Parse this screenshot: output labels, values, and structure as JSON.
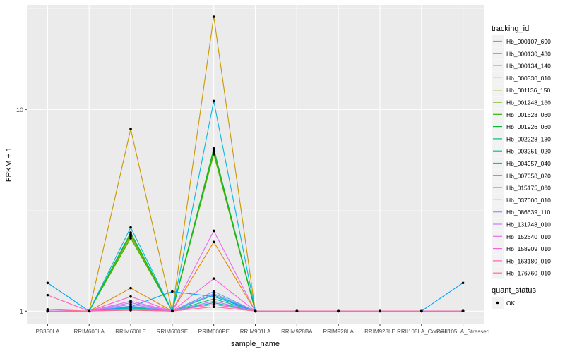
{
  "chart_data": {
    "type": "line",
    "xlabel": "sample_name",
    "ylabel": "FPKM + 1",
    "y_scale": "log10",
    "ylim": [
      0.86,
      33
    ],
    "y_ticks": [
      1,
      10
    ],
    "y_tick_labels": [
      "1",
      "10"
    ],
    "grid": true,
    "panel_background": "#ebebeb",
    "categories": [
      "PB350LA",
      "RRIM600LA",
      "RRIM600LE",
      "RRIM600SE",
      "RRIM600PE",
      "RRIM901LA",
      "RRIM928BA",
      "RRIM928LA",
      "RRIM928LE",
      "RRII105LA_Control",
      "RRII105LA_Stressed"
    ],
    "legend": {
      "position": "right",
      "color_title": "tracking_id",
      "shape_title": "quant_status",
      "shape_items": [
        {
          "label": "OK",
          "shape": "circle"
        }
      ]
    },
    "series": [
      {
        "name": "Hb_000107_690",
        "color": "#F8766D",
        "values": [
          1.0,
          1.0,
          1.05,
          1.0,
          1.1,
          1.0,
          1.0,
          1.0,
          1.0,
          1.0,
          1.0
        ]
      },
      {
        "name": "Hb_000130_430",
        "color": "#E58700",
        "values": [
          1.0,
          1.0,
          1.3,
          1.0,
          2.2,
          1.0,
          1.0,
          1.0,
          1.0,
          1.0,
          1.0
        ]
      },
      {
        "name": "Hb_000134_140",
        "color": "#C99800",
        "values": [
          1.0,
          1.0,
          8.0,
          1.0,
          29.0,
          1.0,
          1.0,
          1.0,
          1.0,
          1.0,
          1.0
        ]
      },
      {
        "name": "Hb_000330_010",
        "color": "#A3A500",
        "values": [
          1.0,
          1.0,
          2.4,
          1.0,
          6.2,
          1.0,
          1.0,
          1.0,
          1.0,
          1.0,
          1.0
        ]
      },
      {
        "name": "Hb_001136_150",
        "color": "#8EAA00",
        "values": [
          1.0,
          1.0,
          2.35,
          1.0,
          6.0,
          1.0,
          1.0,
          1.0,
          1.0,
          1.0,
          1.0
        ]
      },
      {
        "name": "Hb_001248_160",
        "color": "#6BB100",
        "values": [
          1.0,
          1.0,
          2.4,
          1.0,
          6.3,
          1.0,
          1.0,
          1.0,
          1.0,
          1.0,
          1.0
        ]
      },
      {
        "name": "Hb_001628_060",
        "color": "#39B600",
        "values": [
          1.0,
          1.0,
          2.3,
          1.0,
          6.1,
          1.0,
          1.0,
          1.0,
          1.0,
          1.0,
          1.0
        ]
      },
      {
        "name": "Hb_001926_060",
        "color": "#00BA38",
        "values": [
          1.0,
          1.0,
          2.45,
          1.0,
          6.4,
          1.0,
          1.0,
          1.0,
          1.0,
          1.0,
          1.0
        ]
      },
      {
        "name": "Hb_002228_130",
        "color": "#00BF7D",
        "values": [
          1.0,
          1.0,
          1.05,
          1.0,
          1.15,
          1.0,
          1.0,
          1.0,
          1.0,
          1.0,
          1.0
        ]
      },
      {
        "name": "Hb_003251_020",
        "color": "#00C1A3",
        "values": [
          1.0,
          1.0,
          1.04,
          1.0,
          1.2,
          1.0,
          1.0,
          1.0,
          1.0,
          1.0,
          1.0
        ]
      },
      {
        "name": "Hb_004957_040",
        "color": "#00BFC4",
        "values": [
          1.0,
          1.0,
          1.03,
          1.0,
          1.1,
          1.0,
          1.0,
          1.0,
          1.0,
          1.0,
          1.0
        ]
      },
      {
        "name": "Hb_007058_020",
        "color": "#00B9E3",
        "values": [
          1.0,
          1.0,
          2.6,
          1.0,
          11.0,
          1.0,
          1.0,
          1.0,
          1.0,
          1.0,
          1.0
        ]
      },
      {
        "name": "Hb_015175_060",
        "color": "#00A5FF",
        "values": [
          1.38,
          1.0,
          1.05,
          1.25,
          1.18,
          1.0,
          1.0,
          1.0,
          1.0,
          1.0,
          1.38
        ]
      },
      {
        "name": "Hb_037000_010",
        "color": "#619CFF",
        "values": [
          1.0,
          1.0,
          1.06,
          1.0,
          1.25,
          1.0,
          1.0,
          1.0,
          1.0,
          1.0,
          1.0
        ]
      },
      {
        "name": "Hb_086639_110",
        "color": "#9590FF",
        "values": [
          1.0,
          1.0,
          1.08,
          1.0,
          1.22,
          1.0,
          1.0,
          1.0,
          1.0,
          1.0,
          1.0
        ]
      },
      {
        "name": "Hb_131748_010",
        "color": "#C77CFF",
        "values": [
          1.0,
          1.0,
          1.1,
          1.0,
          1.12,
          1.0,
          1.0,
          1.0,
          1.0,
          1.0,
          1.0
        ]
      },
      {
        "name": "Hb_152640_010",
        "color": "#E76BF3",
        "values": [
          1.0,
          1.0,
          1.12,
          1.0,
          2.5,
          1.0,
          1.0,
          1.0,
          1.0,
          1.0,
          1.0
        ]
      },
      {
        "name": "Hb_158909_010",
        "color": "#FA62DB",
        "values": [
          1.0,
          1.0,
          1.18,
          1.0,
          1.45,
          1.0,
          1.0,
          1.0,
          1.0,
          1.0,
          1.0
        ]
      },
      {
        "name": "Hb_163180_010",
        "color": "#FF62BC",
        "values": [
          1.2,
          1.0,
          1.02,
          1.0,
          1.08,
          1.0,
          1.0,
          1.0,
          1.0,
          1.0,
          1.0
        ]
      },
      {
        "name": "Hb_176760_010",
        "color": "#FF6C91",
        "values": [
          1.02,
          1.0,
          1.01,
          1.0,
          1.05,
          1.0,
          1.0,
          1.0,
          1.0,
          1.0,
          1.0
        ]
      }
    ]
  }
}
